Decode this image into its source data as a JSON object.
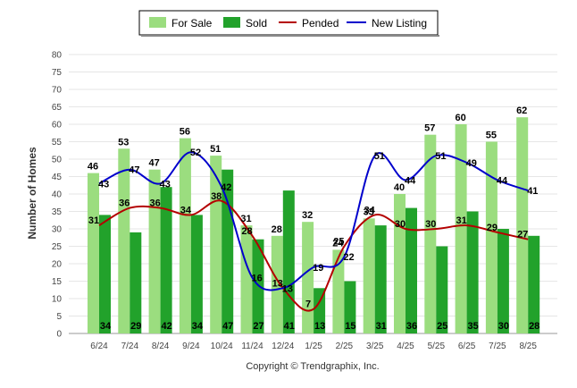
{
  "chart_data": {
    "type": "bar",
    "categories": [
      "6/24",
      "7/24",
      "8/24",
      "9/24",
      "10/24",
      "11/24",
      "12/24",
      "1/25",
      "2/25",
      "3/25",
      "4/25",
      "5/25",
      "6/25",
      "7/25",
      "8/25"
    ],
    "series": [
      {
        "name": "For Sale",
        "type": "bar",
        "color": "#9bdd7f",
        "values": [
          46,
          53,
          47,
          56,
          51,
          31,
          28,
          32,
          24,
          33,
          40,
          57,
          60,
          55,
          62
        ]
      },
      {
        "name": "Sold",
        "type": "bar",
        "color": "#22a22b",
        "values": [
          34,
          29,
          42,
          34,
          47,
          27,
          41,
          13,
          15,
          31,
          36,
          25,
          35,
          30,
          28
        ]
      },
      {
        "name": "Pended",
        "type": "line",
        "color": "#b40000",
        "values": [
          31,
          36,
          36,
          34,
          38,
          28,
          13,
          7,
          25,
          34,
          30,
          30,
          31,
          29,
          27
        ]
      },
      {
        "name": "New Listing",
        "type": "line",
        "color": "#0000cc",
        "values": [
          43,
          47,
          43,
          52,
          42,
          16,
          13,
          19,
          22,
          51,
          44,
          51,
          49,
          44,
          41
        ]
      }
    ],
    "ylabel": "Number of Homes",
    "xlabel": "",
    "ylim": [
      0,
      80
    ],
    "yticks": [
      0,
      5,
      10,
      15,
      20,
      25,
      30,
      35,
      40,
      45,
      50,
      55,
      60,
      65,
      70,
      75,
      80
    ],
    "grid": true,
    "legend_position": "top-center",
    "footer": "Copyright © Trendgraphix, Inc."
  }
}
